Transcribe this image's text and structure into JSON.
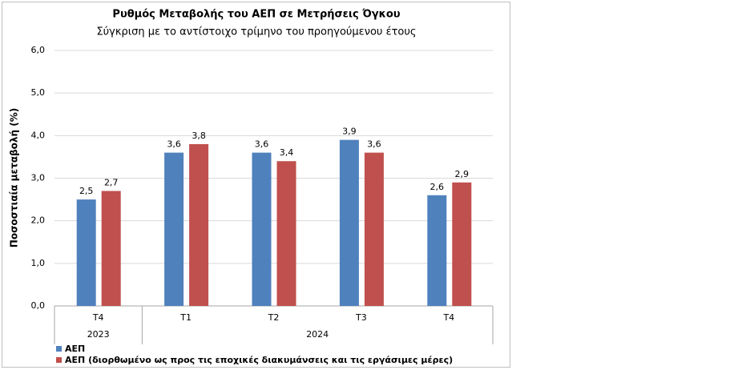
{
  "chart_data": {
    "type": "bar",
    "title": "Ρυθμός Μεταβολής του ΑΕΠ σε Μετρήσεις Όγκου",
    "subtitle": "Σύγκριση με το αντίστοιχο τρίμηνο του προηγούμενου έτους",
    "y_label": "Ποσοστιαία μεταβολή (%)",
    "groups": [
      {
        "name": "2023",
        "categories": [
          "T4"
        ]
      },
      {
        "name": "2024",
        "categories": [
          "T1",
          "T2",
          "T3",
          "T4"
        ]
      }
    ],
    "series": [
      {
        "name": "ΑΕΠ",
        "color": "#4f81bd",
        "values": [
          2.5,
          3.6,
          3.6,
          3.9,
          2.6
        ],
        "value_labels": [
          "2,5",
          "3,6",
          "3,6",
          "3,9",
          "2,6"
        ]
      },
      {
        "name": "ΑΕΠ (διορθωμένο ως προς τις εποχικές διακυμάνσεις και τις εργάσιμες μέρες)",
        "color": "#c0504d",
        "values": [
          2.7,
          3.8,
          3.4,
          3.6,
          2.9
        ],
        "value_labels": [
          "2,7",
          "3,8",
          "3,4",
          "3,6",
          "2,9"
        ]
      }
    ],
    "ylim": [
      0,
      6
    ],
    "yticks": [
      {
        "value": 0,
        "label": "0,0"
      },
      {
        "value": 1,
        "label": "1,0"
      },
      {
        "value": 2,
        "label": "2,0"
      },
      {
        "value": 3,
        "label": "3,0"
      },
      {
        "value": 4,
        "label": "4,0"
      },
      {
        "value": 5,
        "label": "5,0"
      },
      {
        "value": 6,
        "label": "6,0"
      }
    ],
    "grid": true,
    "legend": "bottom"
  }
}
